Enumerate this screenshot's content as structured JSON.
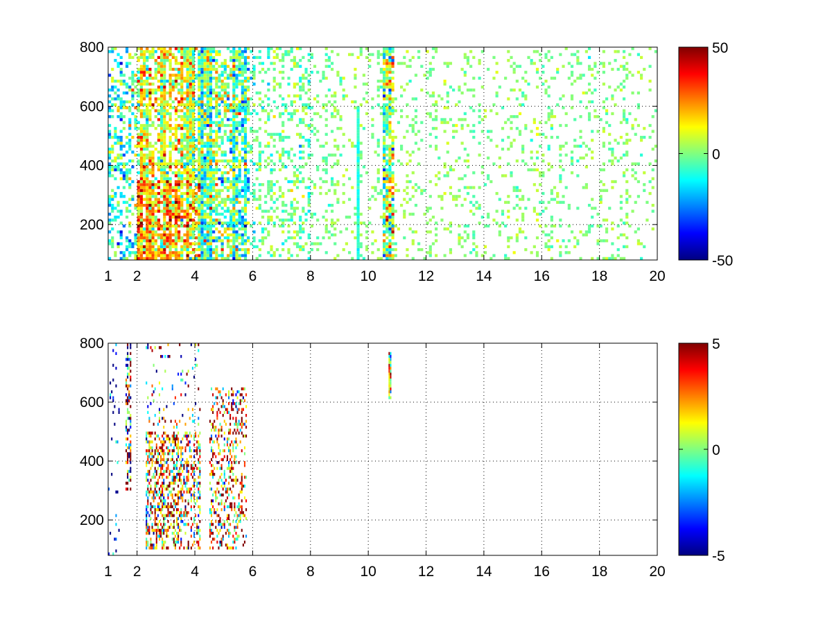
{
  "chart_data": [
    {
      "type": "heatmap",
      "title": "",
      "xlabel": "",
      "ylabel": "",
      "xlim": [
        1,
        20
      ],
      "ylim": [
        80,
        800
      ],
      "x_ticks": [
        1,
        2,
        4,
        6,
        8,
        10,
        12,
        14,
        16,
        18,
        20
      ],
      "y_ticks": [
        200,
        400,
        600,
        800
      ],
      "grid": true,
      "grid_style": "dotted",
      "colormap": "jet",
      "colorbar": {
        "min": -50,
        "max": 50,
        "ticks": [
          50,
          0,
          -50
        ]
      },
      "cell_size": [
        0.1,
        10
      ],
      "regions": [
        {
          "x": [
            1.0,
            1.6
          ],
          "y": [
            80,
            800
          ],
          "density": 0.35,
          "mean": -10,
          "spread": 12
        },
        {
          "x": [
            1.6,
            2.0
          ],
          "y": [
            80,
            800
          ],
          "density": 0.45,
          "mean": -8,
          "spread": 12
        },
        {
          "x": [
            2.0,
            4.2
          ],
          "y": [
            80,
            350
          ],
          "density": 0.92,
          "mean": 20,
          "spread": 14
        },
        {
          "x": [
            2.0,
            4.2
          ],
          "y": [
            350,
            800
          ],
          "density": 0.75,
          "mean": 8,
          "spread": 12
        },
        {
          "x": [
            4.2,
            5.9
          ],
          "y": [
            80,
            800
          ],
          "density": 0.75,
          "mean": -3,
          "spread": 14
        },
        {
          "x": [
            5.9,
            8.0
          ],
          "y": [
            80,
            800
          ],
          "density": 0.3,
          "mean": -2,
          "spread": 6
        },
        {
          "x": [
            8.0,
            20.0
          ],
          "y": [
            80,
            800
          ],
          "density": 0.14,
          "mean": 1,
          "spread": 4
        },
        {
          "x": [
            9.6,
            9.7
          ],
          "y": [
            80,
            600
          ],
          "density": 0.9,
          "mean": -8,
          "spread": 3
        },
        {
          "x": [
            10.5,
            10.9
          ],
          "y": [
            80,
            800
          ],
          "density": 0.85,
          "mean": 4,
          "spread": 14
        }
      ]
    },
    {
      "type": "heatmap",
      "title": "",
      "xlabel": "",
      "ylabel": "",
      "xlim": [
        1,
        20
      ],
      "ylim": [
        80,
        800
      ],
      "x_ticks": [
        1,
        2,
        4,
        6,
        8,
        10,
        12,
        14,
        16,
        18,
        20
      ],
      "y_ticks": [
        200,
        400,
        600,
        800
      ],
      "grid": true,
      "grid_style": "dotted",
      "colormap": "jet",
      "colorbar": {
        "min": -5,
        "max": 5,
        "ticks": [
          5,
          0,
          -5
        ]
      },
      "cell_size": [
        0.05,
        10
      ],
      "regions": [
        {
          "x": [
            1.0,
            1.4
          ],
          "y": [
            80,
            800
          ],
          "density": 0.05,
          "mean": -4,
          "spread": 2
        },
        {
          "x": [
            1.6,
            1.8
          ],
          "y": [
            300,
            800
          ],
          "density": 0.55,
          "mean": 0,
          "spread": 6
        },
        {
          "x": [
            2.3,
            4.2
          ],
          "y": [
            100,
            500
          ],
          "density": 0.45,
          "mean": 2,
          "spread": 3
        },
        {
          "x": [
            2.3,
            4.2
          ],
          "y": [
            500,
            800
          ],
          "density": 0.08,
          "mean": 0,
          "spread": 4
        },
        {
          "x": [
            4.5,
            5.8
          ],
          "y": [
            100,
            650
          ],
          "density": 0.3,
          "mean": 2,
          "spread": 3
        },
        {
          "x": [
            10.7,
            10.8
          ],
          "y": [
            610,
            770
          ],
          "density": 0.95,
          "mean": 0,
          "spread": 2
        }
      ]
    }
  ]
}
